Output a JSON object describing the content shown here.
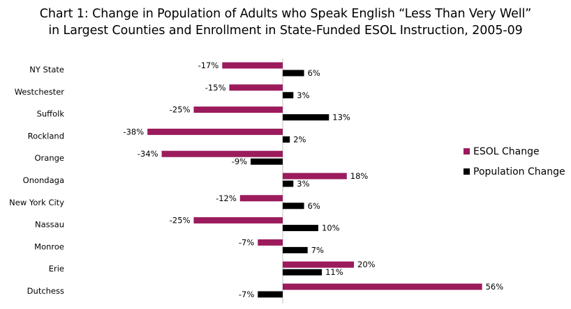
{
  "chart_data": {
    "type": "bar",
    "orientation": "horizontal",
    "title_line1": "Chart 1: Change in Population of Adults who Speak English “Less Than Very Well”",
    "title_line2": "in Largest Counties and Enrollment in State-Funded ESOL Instruction, 2005-09",
    "categories": [
      "NY State",
      "Westchester",
      "Suffolk",
      "Rockland",
      "Orange",
      "Onondaga",
      "New York City",
      "Nassau",
      "Monroe",
      "Erie",
      "Dutchess"
    ],
    "series": [
      {
        "name": "ESOL Change",
        "color": "#9B1B5C",
        "values": [
          -17,
          -15,
          -25,
          -38,
          -34,
          18,
          -12,
          -25,
          -7,
          20,
          56
        ]
      },
      {
        "name": "Population Change",
        "color": "#000000",
        "values": [
          6,
          3,
          13,
          2,
          -9,
          3,
          6,
          10,
          7,
          11,
          -7
        ]
      }
    ],
    "value_suffix": "%",
    "xlim": [
      -40,
      57
    ],
    "grid": false,
    "legend_position": "right"
  }
}
